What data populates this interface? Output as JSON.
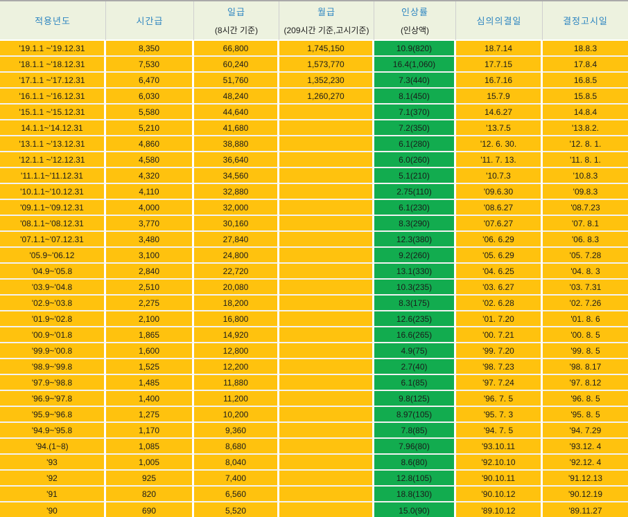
{
  "colors": {
    "cell_orange": "#FFC20E",
    "rate_green": "#12AC4F",
    "header_background": "#EDF2DF",
    "header_text_blue": "#2E86C1"
  },
  "chart_data": {
    "type": "table",
    "title": "",
    "columns": [
      {
        "id": "period",
        "label": "적용년도",
        "sub": ""
      },
      {
        "id": "hourly",
        "label": "시간급",
        "sub": ""
      },
      {
        "id": "daily",
        "label": "일급",
        "sub": "(8시간 기준)"
      },
      {
        "id": "monthly",
        "label": "월급",
        "sub": "(209시간 기준,고시기준)"
      },
      {
        "id": "rate",
        "label": "인상률",
        "sub": "(인상액)"
      },
      {
        "id": "decision-date",
        "label": "심의의결일",
        "sub": ""
      },
      {
        "id": "notice-date",
        "label": "결정고시일",
        "sub": ""
      }
    ],
    "rows": [
      [
        "'19.1.1 ~'19.12.31",
        "8,350",
        "66,800",
        "1,745,150",
        "10.9(820)",
        "18.7.14",
        "18.8.3"
      ],
      [
        "'18.1.1 ~'18.12.31",
        "7,530",
        "60,240",
        "1,573,770",
        "16.4(1,060)",
        "17.7.15",
        "17.8.4"
      ],
      [
        "'17.1.1 ~'17.12.31",
        "6,470",
        "51,760",
        "1,352,230",
        "7.3(440)",
        "16.7.16",
        "16.8.5"
      ],
      [
        "'16.1.1 ~'16.12.31",
        "6,030",
        "48,240",
        "1,260,270",
        "8.1(450)",
        "15.7.9",
        "15.8.5"
      ],
      [
        "'15.1.1 ~'15.12.31",
        "5,580",
        "44,640",
        "",
        "7.1(370)",
        "14.6.27",
        "14.8.4"
      ],
      [
        "14.1.1~'14.12.31",
        "5,210",
        "41,680",
        "",
        "7.2(350)",
        "'13.7.5",
        "'13.8.2."
      ],
      [
        "'13.1.1 ~'13.12.31",
        "4,860",
        "38,880",
        "",
        "6.1(280)",
        "'12. 6. 30.",
        "'12. 8. 1."
      ],
      [
        "'12.1.1 ~'12.12.31",
        "4,580",
        "36,640",
        "",
        "6.0(260)",
        "'11. 7. 13.",
        "'11. 8. 1."
      ],
      [
        "'11.1.1~'11.12.31",
        "4,320",
        "34,560",
        "",
        "5.1(210)",
        "'10.7.3",
        "'10.8.3"
      ],
      [
        "'10.1.1~'10.12.31",
        "4,110",
        "32,880",
        "",
        "2.75(110)",
        "'09.6.30",
        "'09.8.3"
      ],
      [
        "'09.1.1~'09.12.31",
        "4,000",
        "32,000",
        "",
        "6.1(230)",
        "'08.6.27",
        "'08.7.23"
      ],
      [
        "'08.1.1~'08.12.31",
        "3,770",
        "30,160",
        "",
        "8.3(290)",
        "'07.6.27",
        "'07. 8.1"
      ],
      [
        "'07.1.1~'07.12.31",
        "3,480",
        "27,840",
        "",
        "12.3(380)",
        "'06. 6.29",
        "'06. 8.3"
      ],
      [
        "'05.9~'06.12",
        "3,100",
        "24,800",
        "",
        "9.2(260)",
        "'05. 6.29",
        "'05. 7.28"
      ],
      [
        "'04.9~'05.8",
        "2,840",
        "22,720",
        "",
        "13.1(330)",
        "'04. 6.25",
        "'04. 8. 3"
      ],
      [
        "'03.9~'04.8",
        "2,510",
        "20,080",
        "",
        "10.3(235)",
        "'03. 6.27",
        "'03. 7.31"
      ],
      [
        "'02.9~'03.8",
        "2,275",
        "18,200",
        "",
        "8.3(175)",
        "'02. 6.28",
        "'02. 7.26"
      ],
      [
        "'01.9~'02.8",
        "2,100",
        "16,800",
        "",
        "12.6(235)",
        "'01. 7.20",
        "'01. 8. 6"
      ],
      [
        "'00.9~'01.8",
        "1,865",
        "14,920",
        "",
        "16.6(265)",
        "'00. 7.21",
        "'00. 8. 5"
      ],
      [
        "'99.9~'00.8",
        "1,600",
        "12,800",
        "",
        "4.9(75)",
        "'99. 7.20",
        "'99. 8. 5"
      ],
      [
        "'98.9~'99.8",
        "1,525",
        "12,200",
        "",
        "2.7(40)",
        "'98. 7.23",
        "'98. 8.17"
      ],
      [
        "'97.9~'98.8",
        "1,485",
        "11,880",
        "",
        "6.1(85)",
        "'97. 7.24",
        "'97. 8.12"
      ],
      [
        "'96.9~'97.8",
        "1,400",
        "11,200",
        "",
        "9.8(125)",
        "'96. 7. 5",
        "'96. 8. 5"
      ],
      [
        "'95.9~'96.8",
        "1,275",
        "10,200",
        "",
        "8.97(105)",
        "'95. 7. 3",
        "'95. 8. 5"
      ],
      [
        "'94.9~'95.8",
        "1,170",
        "9,360",
        "",
        "7.8(85)",
        "'94. 7. 5",
        "'94. 7.29"
      ],
      [
        "'94.(1~8)",
        "1,085",
        "8,680",
        "",
        "7.96(80)",
        "'93.10.11",
        "'93.12. 4"
      ],
      [
        "'93",
        "1,005",
        "8,040",
        "",
        "8.6(80)",
        "'92.10.10",
        "'92.12. 4"
      ],
      [
        "'92",
        "925",
        "7,400",
        "",
        "12.8(105)",
        "'90.10.11",
        "'91.12.13"
      ],
      [
        "'91",
        "820",
        "6,560",
        "",
        "18.8(130)",
        "'90.10.12",
        "'90.12.19"
      ],
      [
        "'90",
        "690",
        "5,520",
        "",
        "15.0(90)",
        "'89.10.12",
        "'89.11.27"
      ]
    ]
  }
}
